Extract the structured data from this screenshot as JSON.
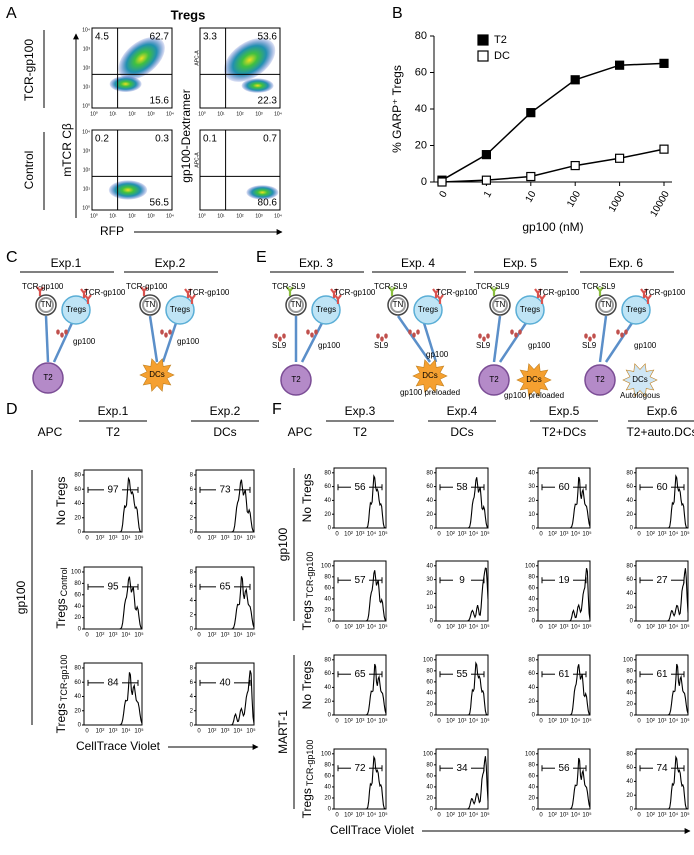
{
  "panel_a": {
    "label": "A",
    "title": "Tregs",
    "row_labels": [
      "TCR-gp100",
      "Control"
    ],
    "y_labels": [
      "mTCR Cβ",
      "gp100-Dextramer"
    ],
    "x_label": "RFP",
    "tick_labels": [
      "10⁰",
      "10¹",
      "10²",
      "10³",
      "10⁴"
    ],
    "axis_tag": "APC-A",
    "plots": [
      {
        "quadrants": [
          4.5,
          62.7,
          15.6
        ]
      },
      {
        "quadrants": [
          3.3,
          53.6,
          22.3
        ]
      },
      {
        "quadrants": [
          0.2,
          0.3,
          56.5
        ]
      },
      {
        "quadrants": [
          0.1,
          0.7,
          80.6
        ]
      }
    ]
  },
  "panel_b_label": "B",
  "chart_data": {
    "type": "line",
    "y_label": "% GARP⁺ Tregs",
    "x_label": "gp100 (nM)",
    "categories": [
      "0",
      "1",
      "10",
      "100",
      "1000",
      "10000"
    ],
    "series": [
      {
        "name": "T2",
        "color": "#000000",
        "marker_fill": "#000000",
        "values": [
          1,
          15,
          38,
          56,
          64,
          65
        ]
      },
      {
        "name": "DC",
        "color": "#000000",
        "marker_fill": "#ffffff",
        "values": [
          0,
          1,
          3,
          9,
          13,
          18
        ]
      }
    ],
    "ylim": [
      0,
      80
    ],
    "yticks": [
      0,
      20,
      40,
      60,
      80
    ],
    "legend": "top-left"
  },
  "panel_c": {
    "label": "C",
    "experiments": [
      {
        "title": "Exp.1",
        "texts": [
          "TCR-gp100",
          "TCR-gp100",
          "TN",
          "Tregs",
          "gp100",
          "T2"
        ]
      },
      {
        "title": "Exp.2",
        "texts": [
          "TCR-gp100",
          "TCR-gp100",
          "TN",
          "Tregs",
          "gp100",
          "DCs"
        ]
      }
    ]
  },
  "panel_e": {
    "label": "E",
    "experiments": [
      {
        "title": "Exp. 3",
        "texts": [
          "TCR-SL9",
          "TCR-gp100",
          "TN",
          "Tregs",
          "SL9",
          "gp100",
          "T2"
        ]
      },
      {
        "title": "Exp. 4",
        "texts": [
          "TCR-SL9",
          "TCR-gp100",
          "TN",
          "Tregs",
          "SL9",
          "gp100",
          "DCs",
          "gp100 preloaded"
        ]
      },
      {
        "title": "Exp. 5",
        "texts": [
          "TCR-SL9",
          "TCR-gp100",
          "TN",
          "Tregs",
          "SL9",
          "gp100",
          "T2",
          "DCs",
          "gp100 preloaded"
        ]
      },
      {
        "title": "Exp. 6",
        "texts": [
          "TCR-SL9",
          "TCR-gp100",
          "TN",
          "Tregs",
          "SL9",
          "gp100",
          "T2",
          "DCs",
          "Autologous"
        ]
      }
    ]
  },
  "panel_d": {
    "label": "D",
    "apc_label": "APC",
    "x_label": "CellTrace Violet",
    "tick_labels": [
      "0",
      "10²",
      "10³",
      "10⁴",
      "10⁵"
    ],
    "columns": [
      {
        "title": "Exp.1",
        "apc": "T2"
      },
      {
        "title": "Exp.2",
        "apc": "DCs"
      }
    ],
    "groups": [
      {
        "name": "gp100",
        "rows": [
          {
            "label": "No Tregs",
            "cells": [
              {
                "percent": 97,
                "yticks": [
                  0,
                  20,
                  40,
                  60,
                  80
                ]
              },
              {
                "percent": 73,
                "yticks": [
                  0,
                  2,
                  4,
                  6,
                  8
                ]
              }
            ]
          },
          {
            "label": "Tregs",
            "sub": "Control",
            "cells": [
              {
                "percent": 95,
                "yticks": [
                  0,
                  20,
                  40,
                  60,
                  80,
                  100
                ]
              },
              {
                "percent": 65,
                "yticks": [
                  0,
                  2,
                  4,
                  6,
                  8
                ]
              }
            ]
          },
          {
            "label": "Tregs",
            "sub": "TCR-gp100",
            "cells": [
              {
                "percent": 84,
                "yticks": [
                  0,
                  20,
                  40,
                  60,
                  80
                ]
              },
              {
                "percent": 40,
                "yticks": [
                  0,
                  2,
                  4,
                  6,
                  8
                ]
              }
            ]
          }
        ]
      }
    ]
  },
  "panel_f": {
    "label": "F",
    "apc_label": "APC",
    "x_label": "CellTrace Violet",
    "tick_labels": [
      "0",
      "10²",
      "10³",
      "10⁴",
      "10⁵"
    ],
    "columns": [
      {
        "title": "Exp.3",
        "apc": "T2"
      },
      {
        "title": "Exp.4",
        "apc": "DCs"
      },
      {
        "title": "Exp.5",
        "apc": "T2+DCs"
      },
      {
        "title": "Exp.6",
        "apc": "T2+auto.DCs"
      }
    ],
    "groups": [
      {
        "name": "gp100",
        "rows": [
          {
            "label": "No Tregs",
            "cells": [
              {
                "percent": 56,
                "yticks": [
                  0,
                  20,
                  40,
                  60,
                  80
                ]
              },
              {
                "percent": 58,
                "yticks": [
                  0,
                  20,
                  40,
                  60,
                  80
                ]
              },
              {
                "percent": 60,
                "yticks": [
                  0,
                  10,
                  20,
                  30,
                  40
                ]
              },
              {
                "percent": 60,
                "yticks": [
                  0,
                  20,
                  40,
                  60,
                  80
                ]
              }
            ]
          },
          {
            "label": "Tregs",
            "sub": "TCR-gp100",
            "cells": [
              {
                "percent": 57,
                "yticks": [
                  0,
                  20,
                  40,
                  60,
                  80,
                  100
                ]
              },
              {
                "percent": 9,
                "yticks": [
                  0,
                  10,
                  20,
                  30,
                  40
                ]
              },
              {
                "percent": 19,
                "yticks": [
                  0,
                  20,
                  40,
                  60,
                  80,
                  100
                ]
              },
              {
                "percent": 27,
                "yticks": [
                  0,
                  20,
                  40,
                  60,
                  80
                ]
              }
            ]
          }
        ]
      },
      {
        "name": "MART-1",
        "rows": [
          {
            "label": "No Tregs",
            "cells": [
              {
                "percent": 65,
                "yticks": [
                  0,
                  20,
                  40,
                  60,
                  80
                ]
              },
              {
                "percent": 55,
                "yticks": [
                  0,
                  20,
                  40,
                  60,
                  80,
                  100
                ]
              },
              {
                "percent": 61,
                "yticks": [
                  0,
                  20,
                  40,
                  60,
                  80
                ]
              },
              {
                "percent": 61,
                "yticks": [
                  0,
                  20,
                  40,
                  60,
                  80,
                  100
                ]
              }
            ]
          },
          {
            "label": "Tregs",
            "sub": "TCR-gp100",
            "cells": [
              {
                "percent": 72,
                "yticks": [
                  0,
                  20,
                  40,
                  60,
                  80,
                  100
                ]
              },
              {
                "percent": 34,
                "yticks": [
                  0,
                  20,
                  40,
                  60,
                  80,
                  100
                ]
              },
              {
                "percent": 56,
                "yticks": [
                  0,
                  20,
                  40,
                  60,
                  80,
                  100
                ]
              },
              {
                "percent": 74,
                "yticks": [
                  0,
                  20,
                  40,
                  60,
                  80
                ]
              }
            ]
          }
        ]
      }
    ]
  }
}
